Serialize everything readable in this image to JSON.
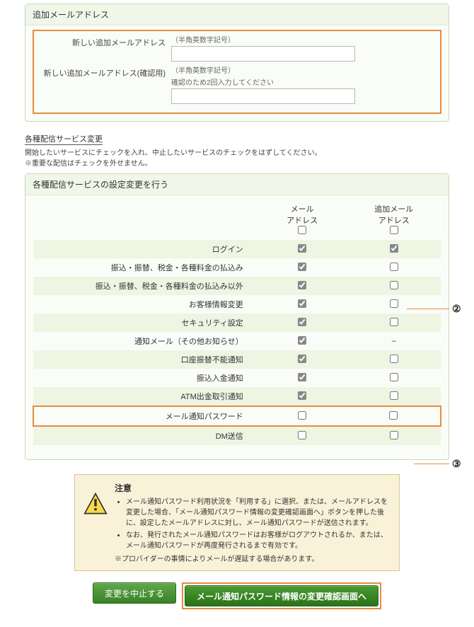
{
  "colors": {
    "highlight_border": "#e88b3e",
    "panel_border": "#c8d8b8",
    "panel_bg": "#fafdf7",
    "panel_title_bg": "#f0f6e8",
    "row_stripe": "#eef5e3",
    "notice_bg": "#f9f2d9",
    "notice_border": "#d4c98a",
    "btn_grad_top": "#5fa84a",
    "btn_grad_bottom": "#3a8128",
    "btn_primary_top": "#4a9a32",
    "btn_primary_bottom": "#2a7318"
  },
  "email_panel": {
    "title": "追加メールアドレス",
    "row1_label": "新しい追加メールアドレス",
    "row1_hint": "（半角英数字記号）",
    "row1_value": "",
    "row2_label": "新しい追加メールアドレス(確認用)",
    "row2_hint1": "（半角英数字記号）",
    "row2_hint2": "確認のため2回入力してください",
    "row2_value": ""
  },
  "service_section": {
    "link_label": "各種配信サービス変更",
    "desc": "開始したいサービスにチェックを入れ、中止したいサービスのチェックをはずしてください。",
    "note": "※重要な配信はチェックを外せません。"
  },
  "table_panel": {
    "title": "各種配信サービスの設定変更を行う",
    "col1": "メール\nアドレス",
    "col2": "追加メール\nアドレス",
    "rows": [
      {
        "label": "ログイン",
        "c1": "checked",
        "c2": "checked",
        "stripe": true
      },
      {
        "label": "振込・振替、税金・各種料金の払込み",
        "c1": "checked",
        "c2": "unchecked",
        "stripe": false
      },
      {
        "label": "振込・振替、税金・各種料金の払込み以外",
        "c1": "checked",
        "c2": "unchecked",
        "stripe": true
      },
      {
        "label": "お客様情報変更",
        "c1": "checked",
        "c2": "unchecked",
        "stripe": false
      },
      {
        "label": "セキュリティ設定",
        "c1": "checked",
        "c2": "unchecked",
        "stripe": true
      },
      {
        "label": "通知メール（その他お知らせ）",
        "c1": "checked",
        "c2": "dash",
        "stripe": false
      },
      {
        "label": "口座振替不能通知",
        "c1": "checked",
        "c2": "unchecked",
        "stripe": true
      },
      {
        "label": "振込入金通知",
        "c1": "checked",
        "c2": "unchecked",
        "stripe": false
      },
      {
        "label": "ATM出金取引通知",
        "c1": "checked",
        "c2": "unchecked",
        "stripe": true
      },
      {
        "label": "メール通知パスワード",
        "c1": "unchecked",
        "c2": "unchecked",
        "stripe": false,
        "highlight": true
      },
      {
        "label": "DM送信",
        "c1": "unchecked",
        "c2": "unchecked",
        "stripe": true
      }
    ]
  },
  "notice": {
    "title": "注意",
    "items": [
      "メール通知パスワード利用状況を「利用する」に選択、または、メールアドレスを変更した場合、「メール通知パスワード情報の変更確認画面へ」ボタンを押した後に、設定したメールアドレスに対し、メール通知パスワードが送信されます。",
      "なお、発行されたメール通知パスワードはお客様がログアウトされるか、または、メール通知パスワードが再度発行されるまで有効です。"
    ],
    "sub": "※プロバイダーの事情によりメールが遅延する場合があります。"
  },
  "buttons": {
    "cancel": "変更を中止する",
    "confirm": "メール通知パスワード情報の変更確認画面へ"
  },
  "callouts": {
    "num2": "②",
    "num3": "③"
  }
}
